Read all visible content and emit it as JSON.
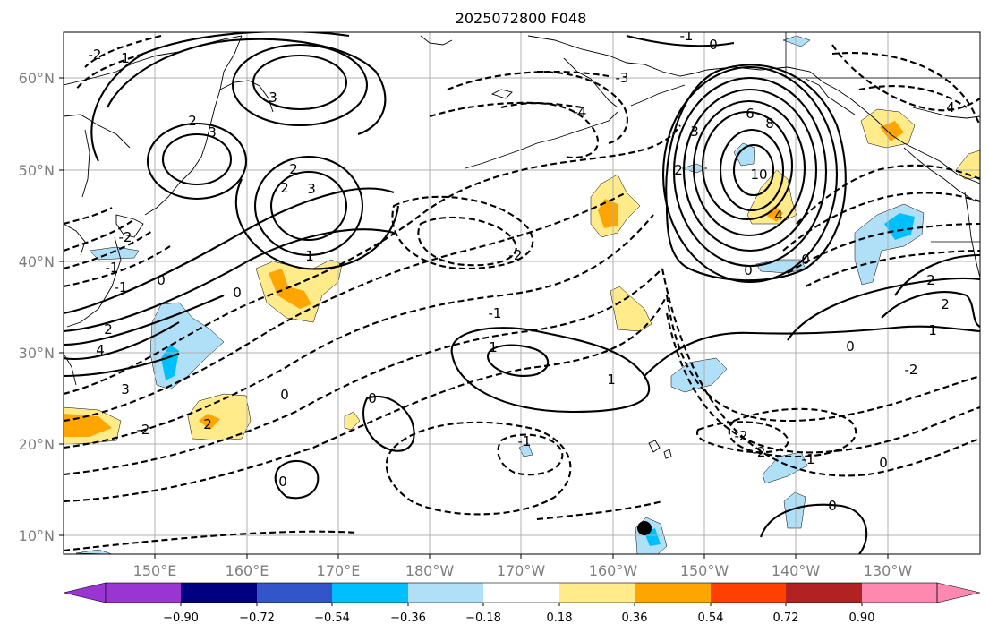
{
  "title": "2025072800 F048",
  "y_labels": [
    "60°N",
    "50°N",
    "40°N",
    "30°N",
    "20°N",
    "10°N"
  ],
  "x_labels": [
    "150°E",
    "160°E",
    "170°E",
    "180°W",
    "170°W",
    "160°W",
    "150°W",
    "140°W",
    "130°W"
  ],
  "colorbar": {
    "ticks": [
      "−0.90",
      "−0.72",
      "−0.54",
      "−0.36",
      "−0.18",
      "0.18",
      "0.36",
      "0.54",
      "0.72",
      "0.90"
    ],
    "colors": [
      "#9a35d3",
      "#000080",
      "#3355cc",
      "#00bfff",
      "#b0e0f8",
      "#ffffff",
      "#ffeb8a",
      "#ffa500",
      "#ff4000",
      "#b22222",
      "#ff88b0"
    ]
  },
  "contour_labels": {
    "c_6": "6",
    "c_8": "8",
    "c_10": "10",
    "c_4_low": "4",
    "c_3_ak": "3",
    "c_2_ak": "2",
    "c_2_jp1": "2",
    "c_3_jp1": "3",
    "c_2_jp2": "2",
    "c_2_jp3": "2",
    "c_3_jp3": "3",
    "c_1_jp3": "1",
    "c_m2_cent": "-2",
    "c_m1_cent": "-1",
    "c_1_sub": "1",
    "c_1_sub2": "1",
    "c_m1_trop": "-1",
    "c_0_a": "0",
    "c_0_b": "0",
    "c_0_c": "0",
    "c_0_d": "0",
    "c_0_e": "0",
    "c_0_f": "0",
    "c_0_g": "0",
    "c_m2_e": "-2",
    "c_m1_e": "-1",
    "c_2_e": "2",
    "c_4_w": "4",
    "c_2_w": "2",
    "c_3_w": "3",
    "c_m2_w": "-2",
    "c_m1_w": "-1",
    "c_1_e2": "1",
    "c_m2_se": "-2",
    "c_m2_se2": "-2",
    "c_m1_se": "-1",
    "c_4_ne": "4",
    "c_3_n": "3",
    "c_m3_n": "-3",
    "c_1_top": "-1",
    "c_0_top": "0",
    "c_m2_tl": "-2",
    "c_1_tl": "1",
    "c_m4_n": "-4",
    "c_2_rc": "2",
    "c_2_rc2": "2",
    "c_m2_se3": "-2",
    "c_0_bot": "0",
    "c_m1_bot": "-1"
  }
}
